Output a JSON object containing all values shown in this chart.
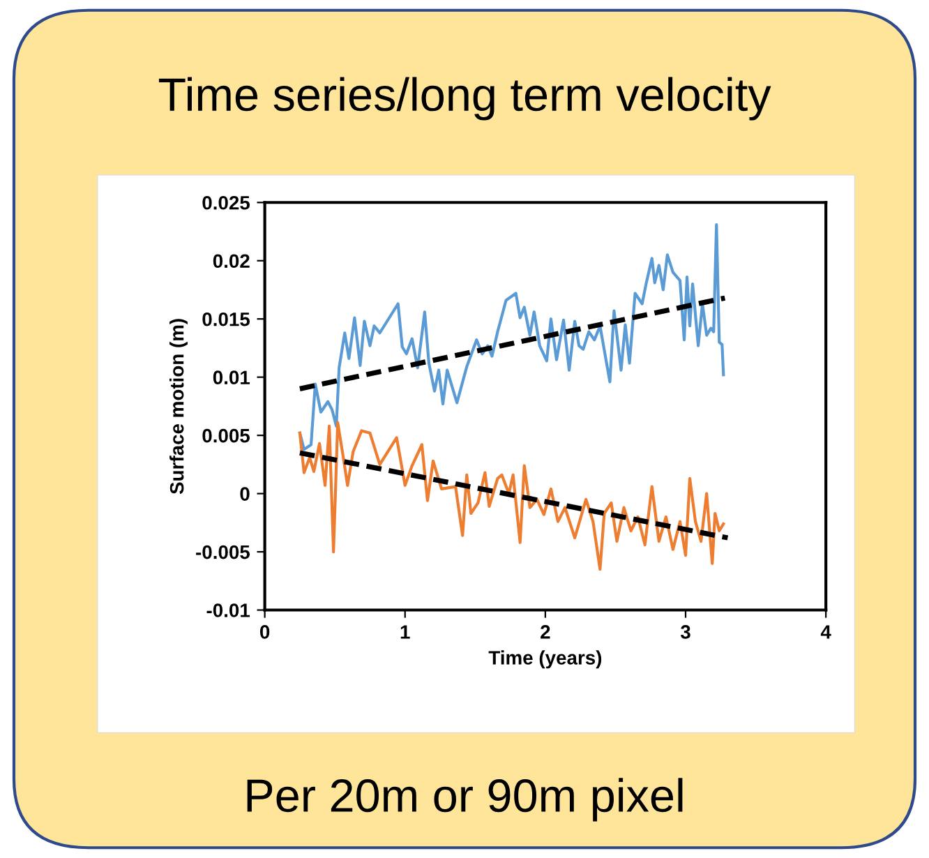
{
  "chart_data": {
    "type": "line",
    "title": "Time series/long term velocity",
    "xlabel": "Time (years)",
    "ylabel": "Surface motion (m)",
    "annotations": [
      "Per 20m or 90m pixel"
    ],
    "xlim": [
      0,
      4
    ],
    "xticks": [
      0,
      1,
      2,
      3,
      4
    ],
    "ylim": [
      -0.01,
      0.025
    ],
    "yticks": [
      -0.01,
      -0.005,
      0,
      0.005,
      0.01,
      0.015,
      0.02,
      0.025
    ],
    "grid": false,
    "legend": false,
    "marker": "none",
    "series": [
      {
        "color": "#5b9bd5",
        "line_style": "solid",
        "x": [
          0.25,
          0.28,
          0.33,
          0.36,
          0.4,
          0.45,
          0.48,
          0.51,
          0.53,
          0.57,
          0.6,
          0.64,
          0.68,
          0.71,
          0.75,
          0.78,
          0.82,
          0.95,
          0.98,
          1.01,
          1.05,
          1.09,
          1.14,
          1.17,
          1.21,
          1.24,
          1.27,
          1.3,
          1.37,
          1.44,
          1.51,
          1.55,
          1.59,
          1.62,
          1.66,
          1.72,
          1.79,
          1.82,
          1.85,
          1.89,
          1.92,
          1.96,
          2.01,
          2.04,
          2.08,
          2.13,
          2.17,
          2.21,
          2.24,
          2.27,
          2.31,
          2.35,
          2.39,
          2.46,
          2.49,
          2.54,
          2.57,
          2.6,
          2.64,
          2.69,
          2.72,
          2.76,
          2.78,
          2.81,
          2.84,
          2.87,
          2.91,
          2.96,
          2.99,
          3.01,
          3.03,
          3.05,
          3.09,
          3.12,
          3.15,
          3.18,
          3.2,
          3.22,
          3.24,
          3.26,
          3.27
        ],
        "values": [
          0.0052,
          0.0038,
          0.0042,
          0.0094,
          0.007,
          0.0079,
          0.0072,
          0.0058,
          0.0108,
          0.0138,
          0.0116,
          0.0151,
          0.011,
          0.0148,
          0.0127,
          0.0144,
          0.0138,
          0.0163,
          0.0126,
          0.012,
          0.0133,
          0.0108,
          0.0156,
          0.0112,
          0.0088,
          0.0106,
          0.0077,
          0.0106,
          0.0078,
          0.0109,
          0.0132,
          0.012,
          0.0127,
          0.0118,
          0.0139,
          0.0166,
          0.0172,
          0.0151,
          0.016,
          0.0136,
          0.0156,
          0.0127,
          0.0114,
          0.015,
          0.0115,
          0.0149,
          0.0106,
          0.0148,
          0.0127,
          0.0124,
          0.0139,
          0.0132,
          0.0144,
          0.0096,
          0.0157,
          0.0106,
          0.0145,
          0.0112,
          0.0172,
          0.0163,
          0.0181,
          0.0202,
          0.0181,
          0.0196,
          0.0175,
          0.0205,
          0.019,
          0.0183,
          0.0132,
          0.0186,
          0.0144,
          0.018,
          0.0127,
          0.0163,
          0.0136,
          0.0142,
          0.0139,
          0.0231,
          0.013,
          0.0128,
          0.0102
        ]
      },
      {
        "color": "#ed7d31",
        "line_style": "solid",
        "x": [
          0.25,
          0.28,
          0.32,
          0.35,
          0.39,
          0.43,
          0.46,
          0.49,
          0.52,
          0.56,
          0.59,
          0.63,
          0.69,
          0.75,
          0.82,
          0.94,
          1.0,
          1.05,
          1.12,
          1.16,
          1.2,
          1.26,
          1.36,
          1.41,
          1.44,
          1.47,
          1.52,
          1.57,
          1.6,
          1.66,
          1.69,
          1.74,
          1.77,
          1.82,
          1.85,
          1.89,
          1.94,
          1.99,
          2.04,
          2.09,
          2.14,
          2.21,
          2.29,
          2.34,
          2.39,
          2.42,
          2.47,
          2.51,
          2.56,
          2.61,
          2.66,
          2.71,
          2.76,
          2.81,
          2.86,
          2.91,
          2.96,
          3.0,
          3.03,
          3.07,
          3.11,
          3.15,
          3.19,
          3.21,
          3.24,
          3.27
        ],
        "values": [
          0.0052,
          0.0018,
          0.0031,
          0.0019,
          0.0043,
          0.0007,
          0.0058,
          -0.005,
          0.0061,
          0.0031,
          0.0007,
          0.0036,
          0.0054,
          0.0052,
          0.0025,
          0.0048,
          0.0007,
          0.0024,
          0.0042,
          -0.0006,
          0.0028,
          0.0004,
          0.0006,
          -0.0036,
          0.0016,
          -0.0017,
          -0.0008,
          0.0018,
          -0.0011,
          0.0013,
          0.0016,
          0.0,
          0.0016,
          -0.0042,
          0.0024,
          -0.0012,
          -0.0005,
          -0.0018,
          0.0004,
          -0.0024,
          -0.0012,
          -0.0038,
          -0.0005,
          -0.0024,
          -0.0065,
          -0.0017,
          -0.0008,
          -0.0041,
          -0.0012,
          -0.0032,
          -0.002,
          -0.0044,
          0.0006,
          -0.0041,
          -0.002,
          -0.0048,
          -0.0024,
          -0.0053,
          0.0013,
          -0.0024,
          -0.0041,
          0.0,
          -0.006,
          -0.0017,
          -0.0032,
          -0.0026
        ]
      },
      {
        "color": "#000000",
        "line_style": "dashed",
        "x": [
          0.25,
          3.28
        ],
        "values": [
          0.009,
          0.0168
        ]
      },
      {
        "color": "#000000",
        "line_style": "dashed",
        "x": [
          0.25,
          3.3
        ],
        "values": [
          0.0035,
          -0.0038
        ]
      }
    ]
  }
}
